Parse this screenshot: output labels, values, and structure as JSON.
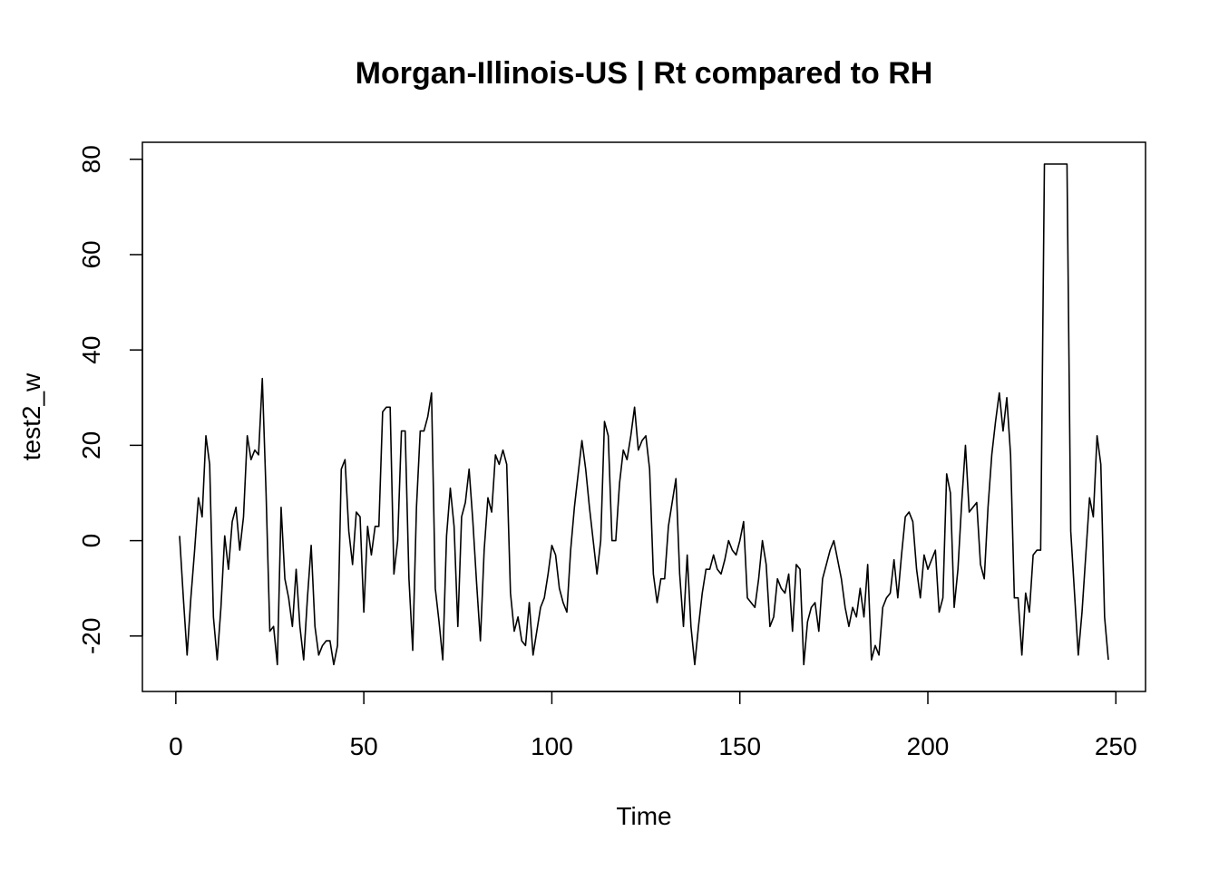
{
  "chart_data": {
    "type": "line",
    "title": "Morgan-Illinois-US | Rt compared to RH",
    "xlabel": "Time",
    "ylabel": "test2_w",
    "xlim": [
      1,
      248
    ],
    "ylim": [
      -26.5,
      79
    ],
    "x_ticks": [
      0,
      50,
      100,
      150,
      200,
      250
    ],
    "y_ticks": [
      -20,
      0,
      20,
      40,
      60,
      80
    ],
    "x_tick_labels": [
      "0",
      "50",
      "100",
      "150",
      "200",
      "250"
    ],
    "y_tick_labels": [
      "-20",
      "0",
      "20",
      "40",
      "60",
      "80"
    ],
    "grid": false,
    "line_color": "#000000",
    "series": [
      {
        "x_start": 1,
        "x_step": 1,
        "values": [
          1,
          -12,
          -24,
          -12,
          -2,
          9,
          5,
          22,
          16,
          -16,
          -25,
          -14,
          1,
          -6,
          4,
          7,
          -2,
          5,
          22,
          17,
          19,
          18,
          34,
          10,
          -19,
          -18,
          -26,
          7,
          -8,
          -12,
          -18,
          -6,
          -18,
          -25,
          -12,
          -1,
          -18,
          -24,
          -22,
          -21,
          -21,
          -26,
          -22,
          15,
          17,
          2,
          -5,
          6,
          5,
          -15,
          3,
          -3,
          3,
          3,
          27,
          28,
          28,
          -7,
          0,
          23,
          23,
          -8,
          -23,
          7,
          23,
          23,
          26,
          31,
          -10,
          -17,
          -25,
          1,
          11,
          3,
          -18,
          5,
          8,
          15,
          4,
          -9,
          -21,
          -2,
          9,
          6,
          18,
          16,
          19,
          16,
          -11,
          -19,
          -16,
          -21,
          -22,
          -13,
          -24,
          -19,
          -14,
          -12,
          -7,
          -1,
          -3,
          -10,
          -13,
          -15,
          -2,
          7,
          14,
          21,
          15,
          7,
          0,
          -7,
          0,
          25,
          22,
          0,
          0,
          12,
          19,
          17,
          22,
          28,
          19,
          21,
          22,
          15,
          -7,
          -13,
          -8,
          -8,
          3,
          8,
          13,
          -7,
          -18,
          -3,
          -18,
          -26,
          -18,
          -11,
          -6,
          -6,
          -3,
          -6,
          -7,
          -4,
          0,
          -2,
          -3,
          0,
          4,
          -12,
          -13,
          -14,
          -8,
          0,
          -5,
          -18,
          -16,
          -8,
          -10,
          -11,
          -7,
          -19,
          -5,
          -6,
          -26,
          -17,
          -14,
          -13,
          -19,
          -8,
          -5,
          -2,
          0,
          -4,
          -8,
          -14,
          -18,
          -14,
          -16,
          -10,
          -16,
          -5,
          -25,
          -22,
          -24,
          -14,
          -12,
          -11,
          -4,
          -12,
          -3,
          5,
          6,
          4,
          -6,
          -12,
          -3,
          -6,
          -4,
          -2,
          -15,
          -12,
          14,
          10,
          -14,
          -6,
          8,
          20,
          6,
          7,
          8,
          -5,
          -8,
          7,
          18,
          25,
          31,
          23,
          30,
          18,
          -12,
          -12,
          -24,
          -11,
          -15,
          -3,
          -2,
          -2,
          79,
          79,
          79,
          79,
          79,
          79,
          79,
          2,
          -11,
          -24,
          -15,
          -3,
          9,
          5,
          22,
          16,
          -16,
          -25
        ]
      }
    ]
  }
}
